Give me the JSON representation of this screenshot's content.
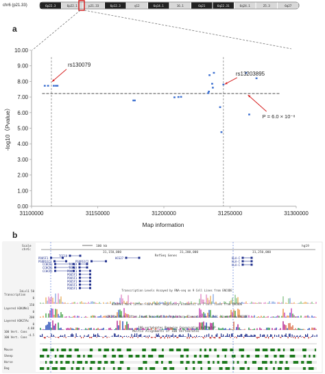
{
  "ideogram": {
    "chrom_label": "chr6 (p21.33)",
    "bands": [
      {
        "label": "6p22.3",
        "shade": "dark"
      },
      {
        "label": "6p22.1",
        "shade": "light"
      },
      {
        "label": "p21.33",
        "shade": "light"
      },
      {
        "label": "6p12.3",
        "shade": "dark"
      },
      {
        "label": "q12",
        "shade": "light"
      },
      {
        "label": "6q14.1",
        "shade": "dark"
      },
      {
        "label": "16.1",
        "shade": "light"
      },
      {
        "label": "6q21",
        "shade": "dark"
      },
      {
        "label": "6q22.31",
        "shade": "dark"
      },
      {
        "label": "6q24.1",
        "shade": "light"
      },
      {
        "label": "25.3",
        "shade": "light"
      },
      {
        "label": "6q27",
        "shade": "light"
      }
    ],
    "highlight_color": "#d62020"
  },
  "panel_a": {
    "label": "a",
    "chart_data": {
      "type": "scatter",
      "title": "",
      "xlabel": "Map information",
      "ylabel": "-log10（Pvalue）",
      "xlim": [
        31100000,
        31300000
      ],
      "ylim": [
        0.0,
        10.0
      ],
      "x_ticks": [
        31100000,
        31150000,
        31200000,
        31250000,
        31300000
      ],
      "y_ticks": [
        "0.00",
        "1.00",
        "2.00",
        "3.00",
        "4.00",
        "5.00",
        "6.00",
        "7.00",
        "8.00",
        "9.00",
        "10.00"
      ],
      "grid": false,
      "series": [
        {
          "color": "#3b6fd0",
          "points": [
            [
              31110000,
              7.72
            ],
            [
              31112500,
              7.72
            ],
            [
              31116800,
              7.72
            ],
            [
              31118400,
              7.72
            ],
            [
              31119600,
              7.72
            ],
            [
              31177000,
              6.78
            ],
            [
              31178000,
              6.78
            ],
            [
              31208000,
              6.98
            ],
            [
              31211000,
              7.0
            ],
            [
              31213000,
              7.01
            ],
            [
              31234500,
              8.4
            ],
            [
              31236500,
              7.85
            ],
            [
              31234000,
              7.35
            ],
            [
              31233500,
              7.25
            ],
            [
              31237800,
              8.55
            ],
            [
              31237000,
              7.6
            ],
            [
              31242500,
              6.35
            ],
            [
              31243500,
              4.75
            ],
            [
              31245000,
              7.8
            ],
            [
              31262200,
              8.55
            ],
            [
              31264500,
              5.88
            ],
            [
              31270000,
              8.2
            ]
          ]
        }
      ],
      "threshold_y": 7.22,
      "vlines": [
        31115000,
        31245000
      ],
      "annotations": [
        {
          "text": "rs130079",
          "x": 31115000,
          "y": 7.72
        },
        {
          "text": "rs13203895",
          "x": 31245000,
          "y": 7.8
        },
        {
          "text": "P = 6.0 × 10⁻⁸",
          "x": 31262000,
          "y": 7.22
        }
      ]
    }
  },
  "panel_b": {
    "label": "b",
    "ruler": {
      "scale_label": "Scale",
      "chrom_label": "chr6:",
      "scale_value": "100 kb",
      "assembly": "hg19",
      "positions": [
        "31,150,000",
        "31,200,000",
        "31,250,000"
      ]
    },
    "genes": {
      "title": "RefSeq Genes",
      "names": [
        "POU5F1",
        "PSORS1C3",
        "TCF19",
        "CCHCR1",
        "CCHCR1",
        "CCHCR1",
        "POU5F1",
        "POU5F1",
        "POU5F1",
        "POU5F1",
        "POU5F1",
        "TCF19",
        "TCF19",
        "POU5F1",
        "HCG27",
        "HLA-C",
        "HLA-C",
        "HLA-C",
        "PSORS1C2"
      ]
    },
    "tracks": [
      {
        "label": "Transcription",
        "scale_top": "InLvl1 50",
        "scale_bottom": "0",
        "title": "Transcription Levels Assayed by RNA-seq on 9 Cell Lines from ENCODE"
      },
      {
        "label": "Layered H3K4Me1",
        "scale_top": "150",
        "scale_bottom": "0",
        "title": "H3K4Me1 Mark (Often Found Near Regulatory Elements) on 7 cell lines from ENCODE"
      },
      {
        "label": "Layered H3K27Ac",
        "scale_top": "200",
        "scale_bottom": "0",
        "title": "H3K27Ac Mark (Often Found Near Active Regulatory Elements) on 7 cell lines from ENCODE"
      },
      {
        "label": "100 Vert. Cons",
        "scale_top": "4.88",
        "scale_bottom": "-4.5",
        "title": "100 vertebrates Basewise Conservation by PhyloP"
      }
    ],
    "multiz": {
      "title": "Multiz Alignments of 100 Vertebrates",
      "species": [
        "Mouse",
        "Sheep",
        "Horse",
        "Dog"
      ]
    }
  }
}
